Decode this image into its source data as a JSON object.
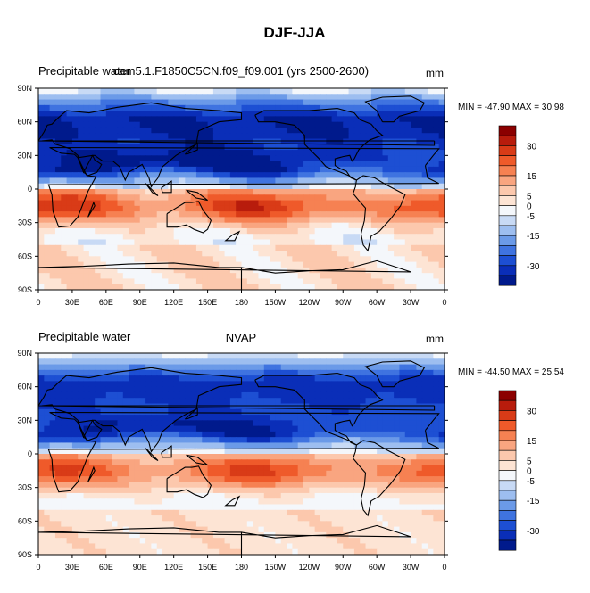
{
  "figure": {
    "title": "DJF-JJA"
  },
  "chart_data": [
    {
      "type": "heatmap",
      "left_title": "Precipitable water",
      "center_title": "cam5.1.F1850C5CN.f09_f09.001 (yrs 2500-2600)",
      "right_title": "mm",
      "stats": "MIN = -47.90 MAX =  30.98",
      "min": -47.9,
      "max": 30.98,
      "colorbar_labels": [
        "30",
        "15",
        "5",
        "0",
        "-5",
        "-15",
        "-30"
      ],
      "y_ticks": [
        "90N",
        "60N",
        "30N",
        "0",
        "30S",
        "60S",
        "90S"
      ],
      "x_ticks": [
        "0",
        "30E",
        "60E",
        "90E",
        "120E",
        "150E",
        "180",
        "150W",
        "120W",
        "90W",
        "60W",
        "30W",
        "0"
      ]
    },
    {
      "type": "heatmap",
      "left_title": "Precipitable water",
      "center_title": "NVAP",
      "right_title": "mm",
      "stats": "MIN = -44.50 MAX =  25.54",
      "min": -44.5,
      "max": 25.54,
      "colorbar_labels": [
        "30",
        "15",
        "5",
        "0",
        "-5",
        "-15",
        "-30"
      ],
      "y_ticks": [
        "90N",
        "60N",
        "30N",
        "0",
        "30S",
        "60S",
        "90S"
      ],
      "x_ticks": [
        "0",
        "30E",
        "60E",
        "90E",
        "120E",
        "150E",
        "180",
        "150W",
        "120W",
        "90W",
        "60W",
        "30W",
        "0"
      ]
    }
  ],
  "colors": {
    "colorbar": [
      "#8b0000",
      "#b81c0c",
      "#d93b17",
      "#ef5a2a",
      "#f68152",
      "#f9a580",
      "#fcc8ad",
      "#fde4d4",
      "#f4f7fb",
      "#c8daf5",
      "#9dbef0",
      "#6b9ae8",
      "#3f73e0",
      "#1d4fd3",
      "#0a2eb8",
      "#001a8c"
    ]
  }
}
